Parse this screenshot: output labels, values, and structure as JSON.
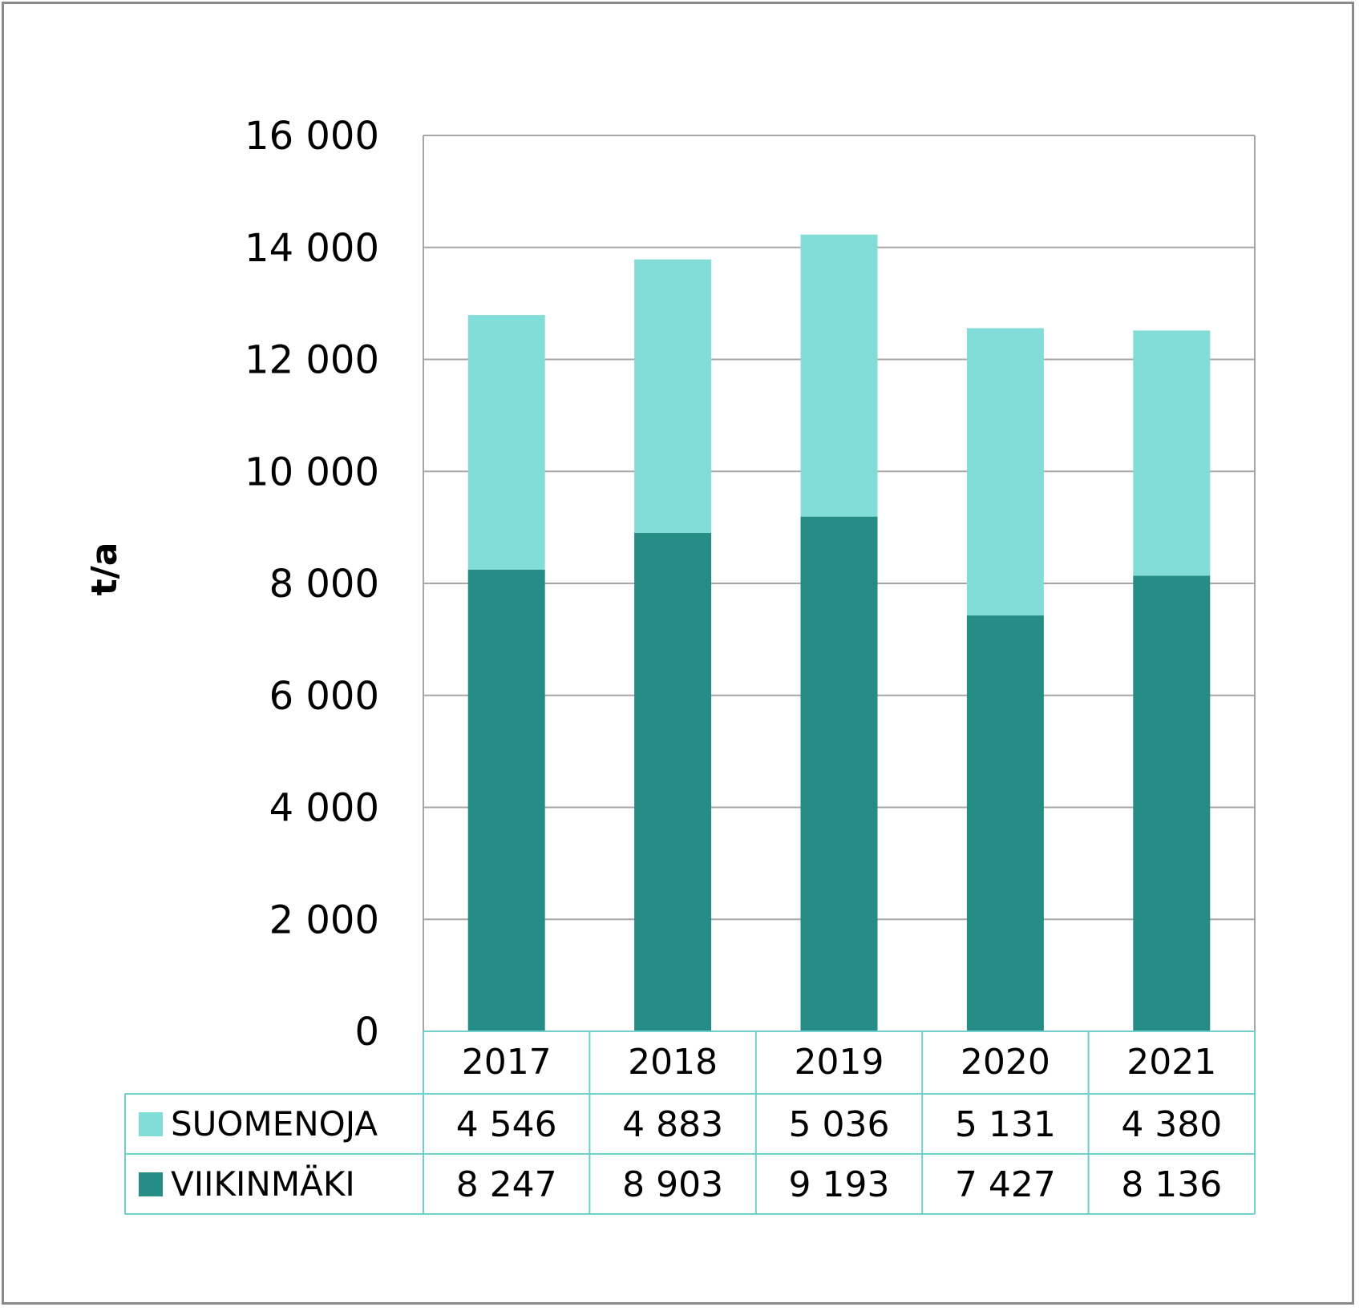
{
  "chart_data": {
    "type": "bar",
    "stacked": true,
    "categories": [
      "2017",
      "2018",
      "2019",
      "2020",
      "2021"
    ],
    "series": [
      {
        "name": "VIIKINMÄKI",
        "values": [
          8247,
          8903,
          9193,
          7427,
          8136
        ],
        "labels": [
          "8 247",
          "8 903",
          "9 193",
          "7 427",
          "8 136"
        ],
        "color": "#258c86"
      },
      {
        "name": "SUOMENOJA",
        "values": [
          4546,
          4883,
          5036,
          5131,
          4380
        ],
        "labels": [
          "4 546",
          "4 883",
          "5 036",
          "5 131",
          "4 380"
        ],
        "color": "#82ddd8"
      }
    ],
    "table_order": [
      1,
      0
    ],
    "ylabel": "t/a",
    "ylim": [
      0,
      16000
    ],
    "yticks": [
      0,
      2000,
      4000,
      6000,
      8000,
      10000,
      12000,
      14000,
      16000
    ],
    "ytick_labels": [
      "0",
      "2 000",
      "4 000",
      "6 000",
      "8 000",
      "10 000",
      "12 000",
      "14 000",
      "16 000"
    ],
    "grid": true,
    "legend": "data-table-left",
    "gridline_color": "#a6a6a6",
    "table_border_color": "#6fcfca"
  }
}
